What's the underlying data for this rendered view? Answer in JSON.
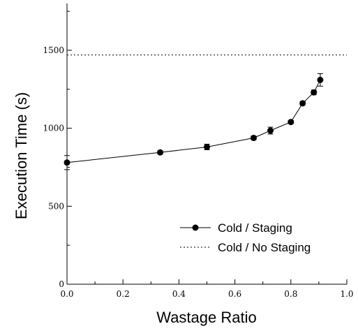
{
  "chart_data": {
    "type": "line",
    "xlabel": "Wastage Ratio",
    "ylabel": "Execution Time (s)",
    "xlim": [
      0,
      1.0
    ],
    "ylim": [
      0,
      1800
    ],
    "xticks": [
      0.0,
      0.2,
      0.4,
      0.6,
      0.8,
      1.0
    ],
    "xtick_labels": [
      "0.0",
      "0.2",
      "0.4",
      "0.6",
      "0.8",
      "1.0"
    ],
    "yticks": [
      0,
      500,
      1000,
      1500
    ],
    "ytick_labels": [
      "0",
      "500",
      "1000",
      "1500"
    ],
    "grid": false,
    "legend_position": "bottom-right",
    "series": [
      {
        "name": "Cold / Staging",
        "style": "solid",
        "marker": "circle",
        "color": "#000000",
        "x": [
          0.0,
          0.333,
          0.5,
          0.667,
          0.727,
          0.8,
          0.842,
          0.882,
          0.905
        ],
        "y": [
          780,
          845,
          880,
          938,
          985,
          1040,
          1160,
          1230,
          1310
        ],
        "error": [
          45,
          10,
          18,
          12,
          22,
          10,
          12,
          15,
          40
        ]
      },
      {
        "name": "Cold / No Staging",
        "style": "dotted",
        "marker": "none",
        "color": "#000000",
        "x": [
          0.0,
          1.0
        ],
        "y": [
          1470,
          1470
        ]
      }
    ]
  }
}
